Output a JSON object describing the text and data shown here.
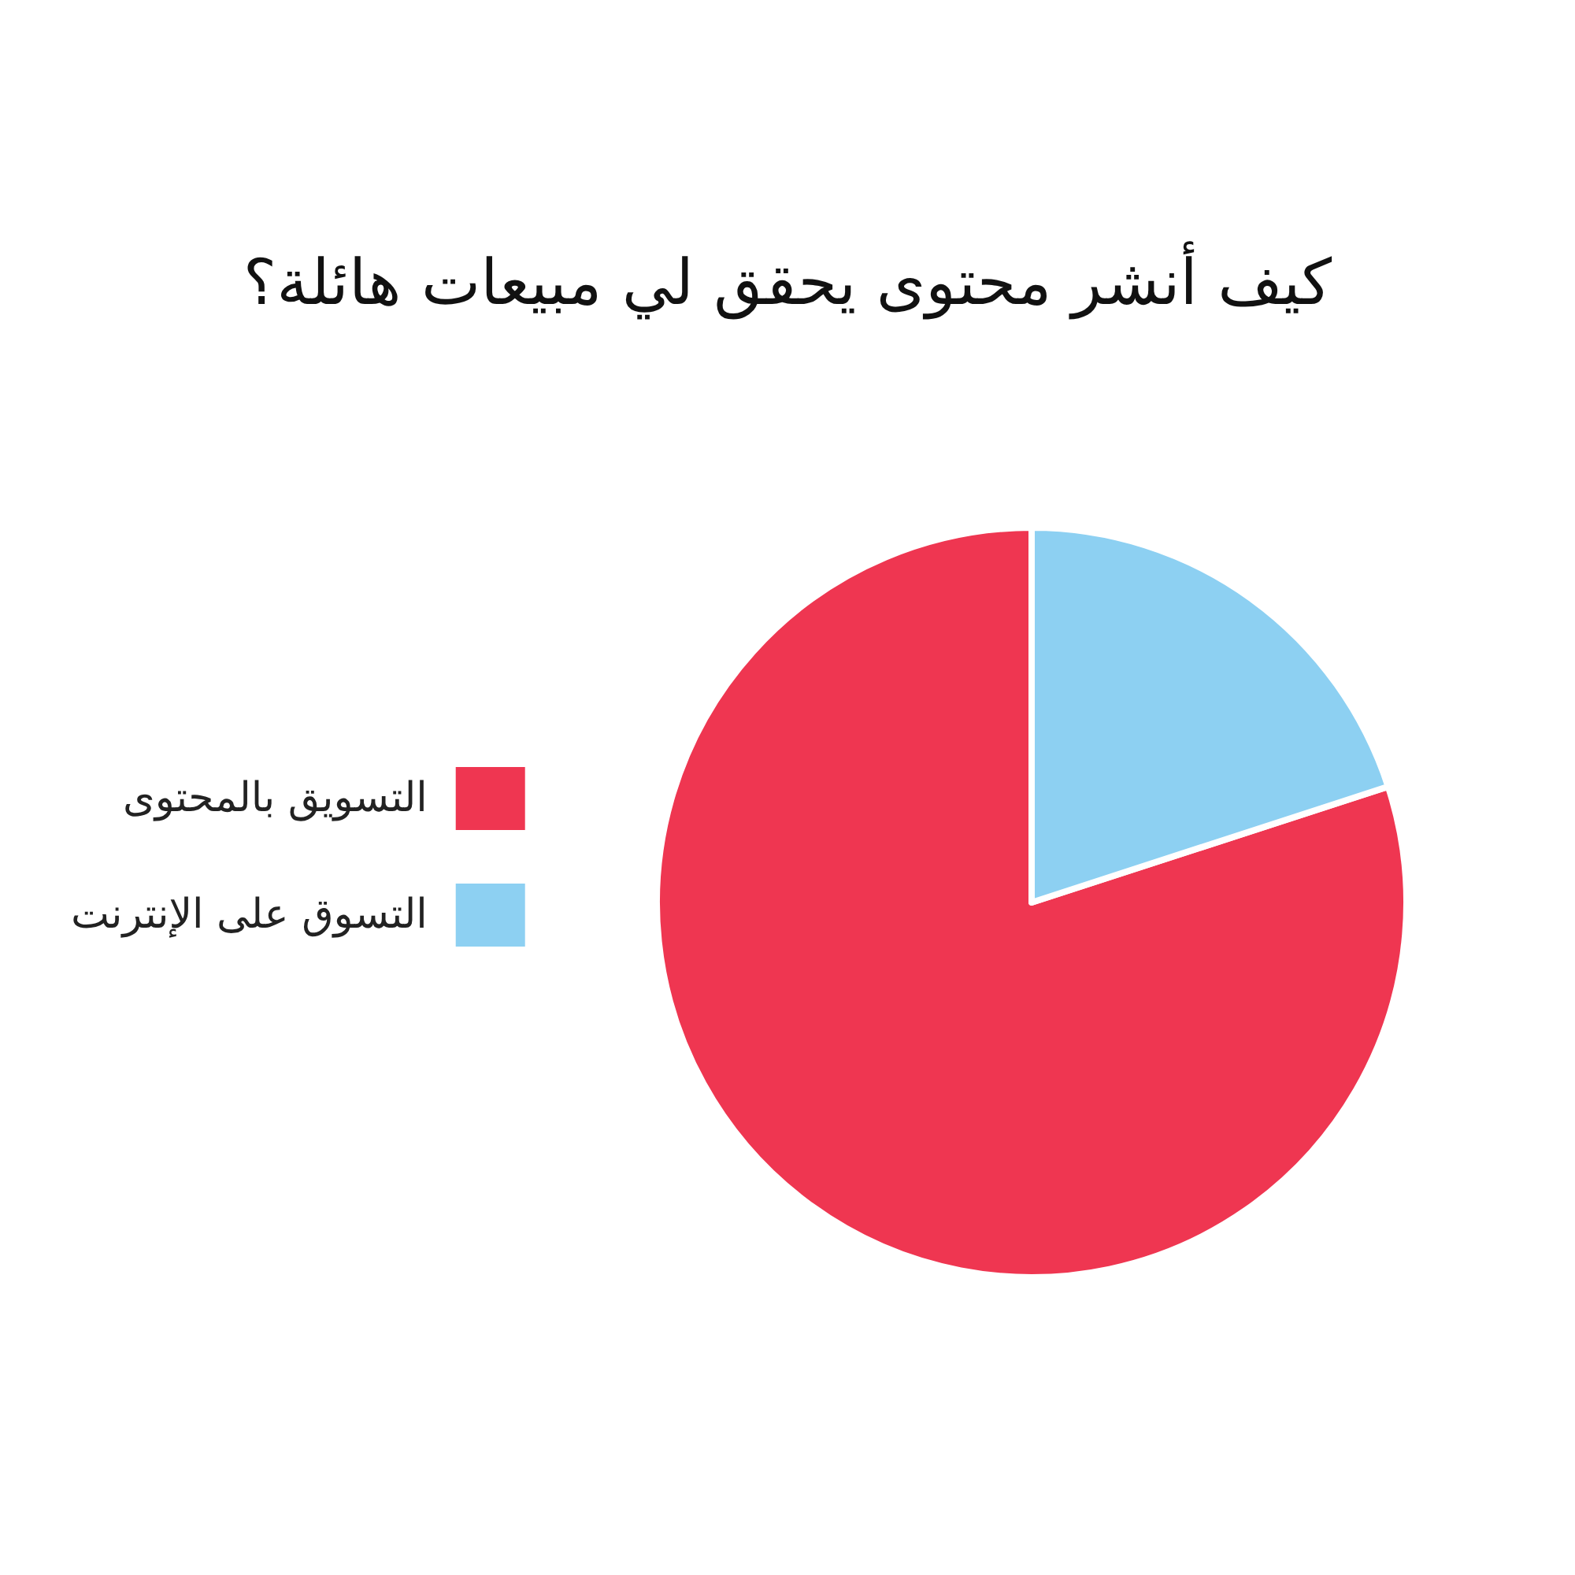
{
  "chart_data": {
    "type": "pie",
    "title": "كيف أنشر محتوى يحقق لي مبيعات هائلة؟",
    "categories": [
      "التسويق بالمحتوى",
      "التسوق على الإنترنت"
    ],
    "values": [
      80,
      20
    ],
    "colors": [
      "#ef3651",
      "#8dd0f2"
    ],
    "legend": "left"
  }
}
